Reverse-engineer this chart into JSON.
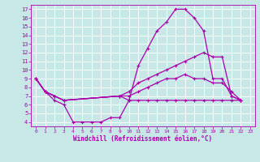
{
  "xlabel": "Windchill (Refroidissement éolien,°C)",
  "xlim": [
    -0.5,
    23.5
  ],
  "ylim": [
    3.5,
    17.5
  ],
  "xticks": [
    0,
    1,
    2,
    3,
    4,
    5,
    6,
    7,
    8,
    9,
    10,
    11,
    12,
    13,
    14,
    15,
    16,
    17,
    18,
    19,
    20,
    21,
    22,
    23
  ],
  "yticks": [
    4,
    5,
    6,
    7,
    8,
    9,
    10,
    11,
    12,
    13,
    14,
    15,
    16,
    17
  ],
  "background_color": "#c8e8e8",
  "line_color": "#aa00aa",
  "grid_color": "#aacccc",
  "lines": [
    {
      "x": [
        0,
        1,
        2,
        3,
        4,
        5,
        6,
        7,
        8,
        9,
        10,
        11,
        12,
        13,
        14,
        15,
        16,
        17,
        18,
        19,
        20,
        21,
        22
      ],
      "y": [
        9,
        7.5,
        6.5,
        6.0,
        4.0,
        4.0,
        4.0,
        4.0,
        4.5,
        4.5,
        6.5,
        10.5,
        12.5,
        14.5,
        15.5,
        17.0,
        17.0,
        16.0,
        14.5,
        9.0,
        9.0,
        7.0,
        6.5
      ]
    },
    {
      "x": [
        0,
        1,
        2,
        3,
        9,
        10,
        11,
        12,
        13,
        14,
        15,
        16,
        17,
        18,
        19,
        20,
        21,
        22
      ],
      "y": [
        9,
        7.5,
        7.0,
        6.5,
        7.0,
        7.5,
        8.5,
        9.0,
        9.5,
        10.0,
        10.5,
        11.0,
        11.5,
        12.0,
        11.5,
        11.5,
        7.0,
        6.5
      ]
    },
    {
      "x": [
        0,
        1,
        2,
        3,
        9,
        10,
        11,
        12,
        13,
        14,
        15,
        16,
        17,
        18,
        19,
        20,
        21,
        22
      ],
      "y": [
        9,
        7.5,
        7.0,
        6.5,
        7.0,
        7.0,
        7.5,
        8.0,
        8.5,
        9.0,
        9.0,
        9.5,
        9.0,
        9.0,
        8.5,
        8.5,
        7.5,
        6.5
      ]
    },
    {
      "x": [
        0,
        1,
        2,
        3,
        9,
        10,
        11,
        12,
        13,
        14,
        15,
        16,
        17,
        18,
        19,
        20,
        21,
        22
      ],
      "y": [
        9,
        7.5,
        7.0,
        6.5,
        7.0,
        6.5,
        6.5,
        6.5,
        6.5,
        6.5,
        6.5,
        6.5,
        6.5,
        6.5,
        6.5,
        6.5,
        6.5,
        6.5
      ]
    }
  ]
}
